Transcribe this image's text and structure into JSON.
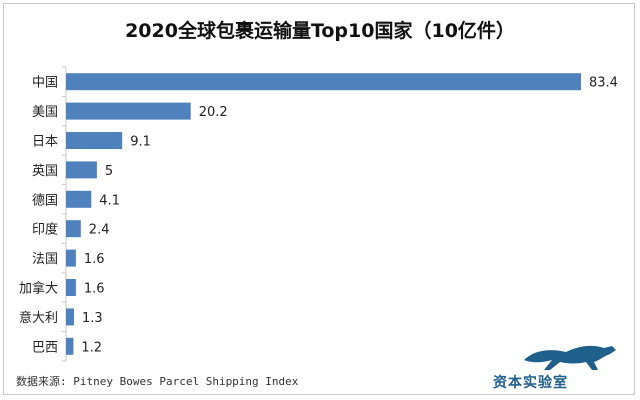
{
  "source_text": "数据来源: Pitney Bowes Parcel Shipping Index",
  "brand": "资本实验室",
  "colors": {
    "bar": "#4f81bd",
    "axis": "#c8c8c8",
    "brand": "#1f5f8c"
  },
  "chart_data": {
    "type": "bar",
    "orientation": "horizontal",
    "title": "2020全球包裹运输量Top10国家（10亿件）",
    "categories": [
      "中国",
      "美国",
      "日本",
      "英国",
      "德国",
      "印度",
      "法国",
      "加拿大",
      "意大利",
      "巴西"
    ],
    "values": [
      83.4,
      20.2,
      9.1,
      5,
      4.1,
      2.4,
      1.6,
      1.6,
      1.3,
      1.2
    ],
    "value_labels": [
      "83.4",
      "20.2",
      "9.1",
      "5",
      "4.1",
      "2.4",
      "1.6",
      "1.6",
      "1.3",
      "1.2"
    ],
    "xlabel": "",
    "ylabel": "",
    "xlim": [
      0,
      83.4
    ],
    "grid": false,
    "legend": "none"
  }
}
